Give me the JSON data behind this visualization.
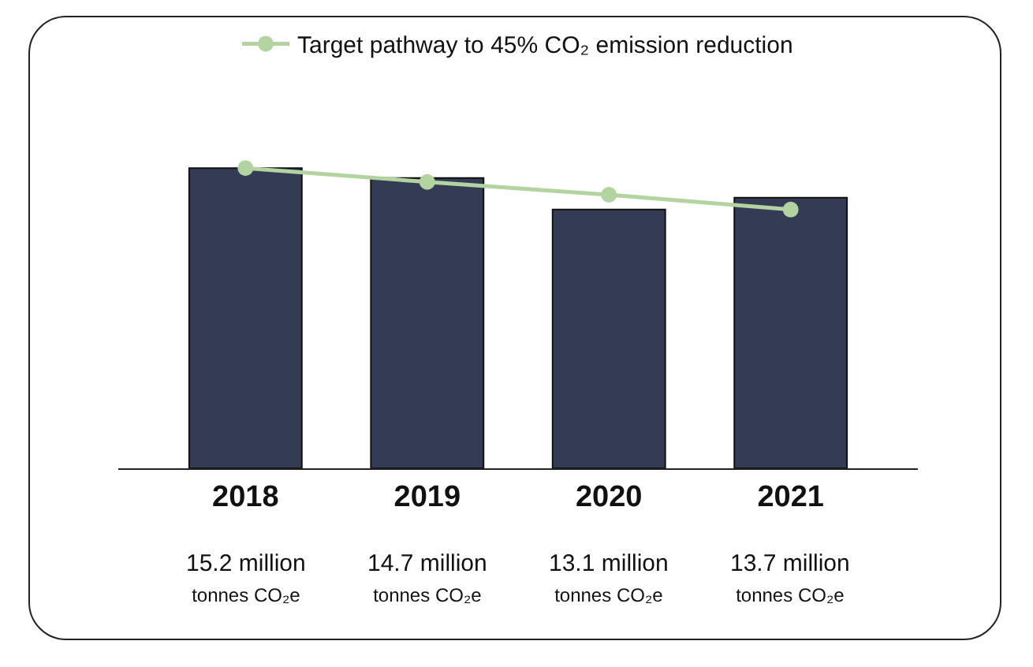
{
  "chart_data": {
    "type": "bar",
    "categories": [
      "2018",
      "2019",
      "2020",
      "2021"
    ],
    "series": [
      {
        "color": "#343c55",
        "values": [
          15.2,
          14.7,
          13.1,
          13.7
        ],
        "value_labels": [
          "15.2 million\ntonnes CO₂e",
          "14.7 million\ntonnes CO₂e",
          "13.1 million\ntonnes CO₂e",
          "13.7 million\ntonnes CO₂e"
        ]
      },
      {
        "type": "line",
        "name": "Target pathway to 45% CO₂ emission reduction",
        "color": "#b3d3a0",
        "values": [
          15.2,
          14.5,
          13.85,
          13.1
        ],
        "marker": "circle"
      }
    ],
    "legend": "top",
    "grid": false,
    "tick_labels": "x"
  }
}
